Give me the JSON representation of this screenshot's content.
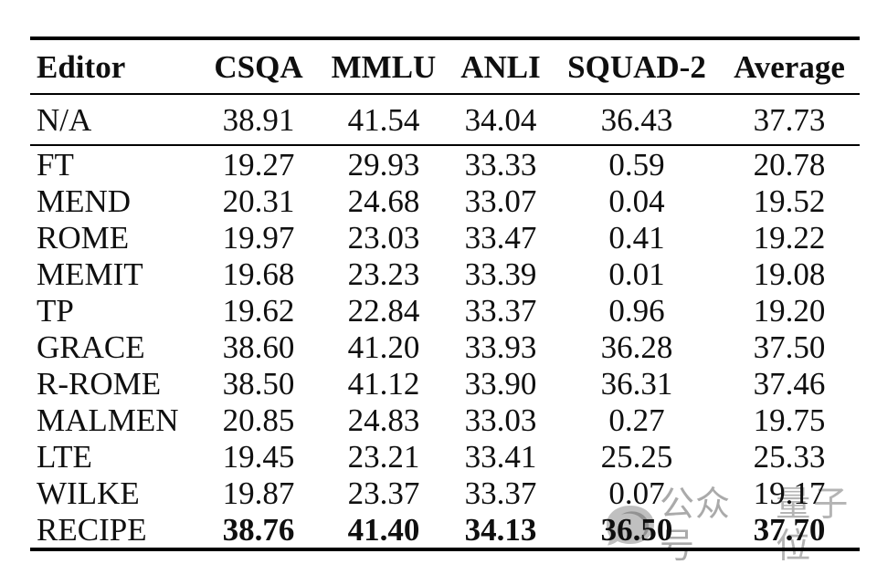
{
  "page": {
    "background": "#ffffff",
    "text_color": "#0f0f0f",
    "rule_color": "#000000"
  },
  "table": {
    "columns": [
      "Editor",
      "CSQA",
      "MMLU",
      "ANLI",
      "SQUAD-2",
      "Average"
    ],
    "baseline_row": {
      "editor": "N/A",
      "values": [
        "38.91",
        "41.54",
        "34.04",
        "36.43",
        "37.73"
      ],
      "bold": false
    },
    "rows": [
      {
        "editor": "FT",
        "values": [
          "19.27",
          "29.93",
          "33.33",
          "0.59",
          "20.78"
        ],
        "bold": false
      },
      {
        "editor": "MEND",
        "values": [
          "20.31",
          "24.68",
          "33.07",
          "0.04",
          "19.52"
        ],
        "bold": false
      },
      {
        "editor": "ROME",
        "values": [
          "19.97",
          "23.03",
          "33.47",
          "0.41",
          "19.22"
        ],
        "bold": false
      },
      {
        "editor": "MEMIT",
        "values": [
          "19.68",
          "23.23",
          "33.39",
          "0.01",
          "19.08"
        ],
        "bold": false
      },
      {
        "editor": "TP",
        "values": [
          "19.62",
          "22.84",
          "33.37",
          "0.96",
          "19.20"
        ],
        "bold": false
      },
      {
        "editor": "GRACE",
        "values": [
          "38.60",
          "41.20",
          "33.93",
          "36.28",
          "37.50"
        ],
        "bold": false
      },
      {
        "editor": "R-ROME",
        "values": [
          "38.50",
          "41.12",
          "33.90",
          "36.31",
          "37.46"
        ],
        "bold": false
      },
      {
        "editor": "MALMEN",
        "values": [
          "20.85",
          "24.83",
          "33.03",
          "0.27",
          "19.75"
        ],
        "bold": false
      },
      {
        "editor": "LTE",
        "values": [
          "19.45",
          "23.21",
          "33.41",
          "25.25",
          "25.33"
        ],
        "bold": false
      },
      {
        "editor": "WILKE",
        "values": [
          "19.87",
          "23.37",
          "33.37",
          "0.07",
          "19.17"
        ],
        "bold": false
      },
      {
        "editor": "RECIPE",
        "values": [
          "38.76",
          "41.40",
          "34.13",
          "36.50",
          "37.70"
        ],
        "bold": true
      }
    ]
  },
  "watermark": {
    "text_left": "公众号",
    "text_right": "量子位",
    "color": "#9c9c9c"
  },
  "chart_data": {
    "type": "table",
    "columns": [
      "Editor",
      "CSQA",
      "MMLU",
      "ANLI",
      "SQUAD-2",
      "Average"
    ],
    "rows": [
      [
        "N/A",
        38.91,
        41.54,
        34.04,
        36.43,
        37.73
      ],
      [
        "FT",
        19.27,
        29.93,
        33.33,
        0.59,
        20.78
      ],
      [
        "MEND",
        20.31,
        24.68,
        33.07,
        0.04,
        19.52
      ],
      [
        "ROME",
        19.97,
        23.03,
        33.47,
        0.41,
        19.22
      ],
      [
        "MEMIT",
        19.68,
        23.23,
        33.39,
        0.01,
        19.08
      ],
      [
        "TP",
        19.62,
        22.84,
        33.37,
        0.96,
        19.2
      ],
      [
        "GRACE",
        38.6,
        41.2,
        33.93,
        36.28,
        37.5
      ],
      [
        "R-ROME",
        38.5,
        41.12,
        33.9,
        36.31,
        37.46
      ],
      [
        "MALMEN",
        20.85,
        24.83,
        33.03,
        0.27,
        19.75
      ],
      [
        "LTE",
        19.45,
        23.21,
        33.41,
        25.25,
        25.33
      ],
      [
        "WILKE",
        19.87,
        23.37,
        33.37,
        0.07,
        19.17
      ],
      [
        "RECIPE",
        38.76,
        41.4,
        34.13,
        36.5,
        37.7
      ]
    ],
    "emphasis": {
      "bold_values_row": "RECIPE"
    },
    "layout": {
      "rules": "thick top and bottom, thin rule under header and under N/A row",
      "value_alignment": "center",
      "editor_alignment": "left"
    }
  }
}
